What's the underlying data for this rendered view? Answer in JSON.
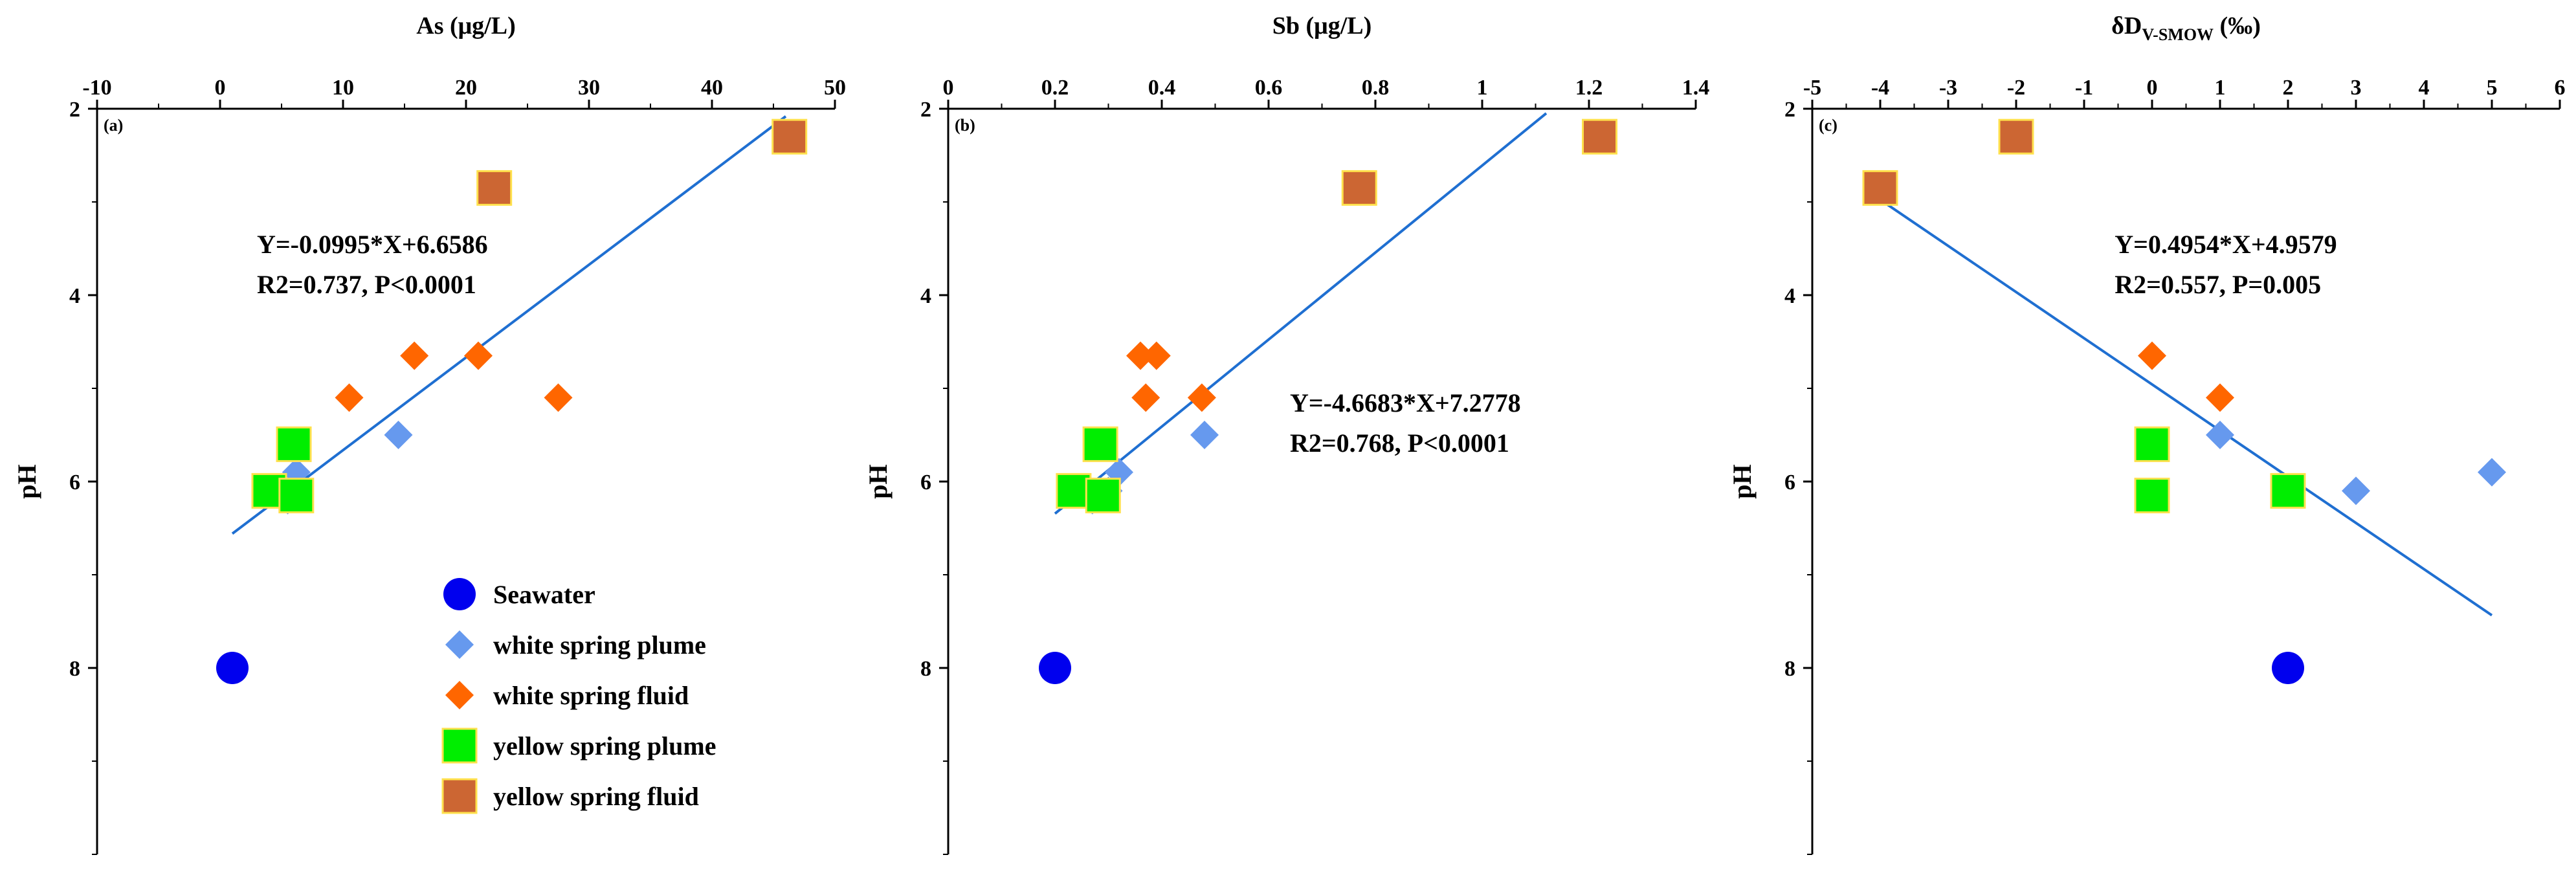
{
  "chart_data": {
    "type": "scatter",
    "legend": [
      {
        "key": "seawater",
        "label": "Seawater",
        "marker": "circle",
        "color": "#0000ee"
      },
      {
        "key": "wsp",
        "label": "white spring plume",
        "marker": "diamond",
        "color": "#6699ee"
      },
      {
        "key": "wsf",
        "label": "white spring fluid",
        "marker": "diamond",
        "color": "#ff6600"
      },
      {
        "key": "ysp",
        "label": "yellow spring plume",
        "marker": "square",
        "color": "#00ee00"
      },
      {
        "key": "ysf",
        "label": "yellow spring fluid",
        "marker": "square",
        "color": "#cc6633"
      }
    ],
    "panels": [
      {
        "id": "a",
        "letter": "(a)",
        "xlabel": "As (μg/L)",
        "ylabel": "pH",
        "xlim": [
          -10,
          50
        ],
        "ylim": [
          2,
          10
        ],
        "x_ticks": [
          -10,
          0,
          10,
          20,
          30,
          40,
          50
        ],
        "x_tick_labels": [
          "-10",
          "0",
          "10",
          "20",
          "30",
          "40",
          "50"
        ],
        "y_ticks": [
          2,
          4,
          6,
          8
        ],
        "y_tick_labels": [
          "2",
          "4",
          "6",
          "8"
        ],
        "x_minor_step": 5,
        "y_minor_step": 1,
        "series": [
          {
            "key": "seawater",
            "points": [
              [
                1,
                8.0
              ]
            ]
          },
          {
            "key": "wsp",
            "points": [
              [
                14.5,
                5.5
              ],
              [
                6.2,
                5.9
              ],
              [
                3.8,
                6.1
              ],
              [
                5.5,
                6.2
              ]
            ]
          },
          {
            "key": "wsf",
            "points": [
              [
                10.5,
                5.1
              ],
              [
                15.8,
                4.65
              ],
              [
                21,
                4.65
              ],
              [
                27.5,
                5.1
              ]
            ]
          },
          {
            "key": "ysp",
            "points": [
              [
                6,
                5.6
              ],
              [
                4,
                6.1
              ],
              [
                6.2,
                6.15
              ]
            ]
          },
          {
            "key": "ysf",
            "points": [
              [
                22.3,
                2.85
              ],
              [
                46.3,
                2.3
              ]
            ]
          }
        ],
        "fit": {
          "x_range": [
            1,
            46
          ],
          "slope": -0.0995,
          "intercept": 6.6586
        },
        "equation_lines": [
          "Y=-0.0995*X+6.6586",
          "R2=0.737, P<0.0001"
        ],
        "equation_pos": [
          3,
          3.55
        ],
        "show_legend": true
      },
      {
        "id": "b",
        "letter": "(b)",
        "xlabel": "Sb (μg/L)",
        "ylabel": "pH",
        "xlim": [
          0,
          1.4
        ],
        "ylim": [
          2,
          10
        ],
        "x_ticks": [
          0,
          0.2,
          0.4,
          0.6,
          0.8,
          1.0,
          1.2,
          1.4
        ],
        "x_tick_labels": [
          "0",
          "0.2",
          "0.4",
          "0.6",
          "0.8",
          "1",
          "1.2",
          "1.4"
        ],
        "y_ticks": [
          2,
          4,
          6,
          8
        ],
        "y_tick_labels": [
          "2",
          "4",
          "6",
          "8"
        ],
        "x_minor_step": 0.1,
        "y_minor_step": 1,
        "series": [
          {
            "key": "seawater",
            "points": [
              [
                0.2,
                8.0
              ]
            ]
          },
          {
            "key": "wsp",
            "points": [
              [
                0.48,
                5.5
              ],
              [
                0.32,
                5.9
              ],
              [
                0.3,
                6.1
              ],
              [
                0.27,
                6.2
              ]
            ]
          },
          {
            "key": "wsf",
            "points": [
              [
                0.36,
                4.65
              ],
              [
                0.39,
                4.65
              ],
              [
                0.37,
                5.1
              ],
              [
                0.475,
                5.1
              ]
            ]
          },
          {
            "key": "ysp",
            "points": [
              [
                0.285,
                5.6
              ],
              [
                0.235,
                6.1
              ],
              [
                0.29,
                6.15
              ]
            ]
          },
          {
            "key": "ysf",
            "points": [
              [
                0.77,
                2.85
              ],
              [
                1.22,
                2.3
              ]
            ]
          }
        ],
        "fit": {
          "x_range": [
            0.2,
            1.12
          ],
          "slope": -4.6683,
          "intercept": 7.2778
        },
        "equation_lines": [
          "Y=-4.6683*X+7.2778",
          "R2=0.768, P<0.0001"
        ],
        "equation_pos": [
          0.64,
          5.25
        ],
        "show_legend": false
      },
      {
        "id": "c",
        "letter": "(c)",
        "xlabel": "δD",
        "xlabel_sub": "V-SMOW",
        "xlabel_tail": " (‰)",
        "ylabel": "pH",
        "xlim": [
          -5,
          6
        ],
        "ylim": [
          2,
          10
        ],
        "x_ticks": [
          -5,
          -4,
          -3,
          -2,
          -1,
          0,
          1,
          2,
          3,
          4,
          5,
          6
        ],
        "x_tick_labels": [
          "-5",
          "-4",
          "-3",
          "-2",
          "-1",
          "0",
          "1",
          "2",
          "3",
          "4",
          "5",
          "6"
        ],
        "y_ticks": [
          2,
          4,
          6,
          8
        ],
        "y_tick_labels": [
          "2",
          "4",
          "6",
          "8"
        ],
        "x_minor_step": 0.5,
        "y_minor_step": 1,
        "series": [
          {
            "key": "seawater",
            "points": [
              [
                2,
                8.0
              ]
            ]
          },
          {
            "key": "wsp",
            "points": [
              [
                1,
                5.5
              ],
              [
                2,
                6.1
              ],
              [
                3,
                6.1
              ],
              [
                5,
                5.9
              ]
            ]
          },
          {
            "key": "wsf",
            "points": [
              [
                0,
                4.65
              ],
              [
                1,
                5.1
              ]
            ]
          },
          {
            "key": "ysp",
            "points": [
              [
                0,
                5.6
              ],
              [
                0,
                6.15
              ],
              [
                2,
                6.1
              ]
            ]
          },
          {
            "key": "ysf",
            "points": [
              [
                -4,
                2.85
              ],
              [
                -2,
                2.3
              ]
            ]
          }
        ],
        "fit": {
          "x_range": [
            -4,
            5
          ],
          "slope": 0.4954,
          "intercept": 4.9579
        },
        "equation_lines": [
          "Y=0.4954*X+4.9579",
          "R2=0.557, P=0.005"
        ],
        "equation_pos": [
          -0.55,
          3.55
        ],
        "show_legend": false
      }
    ]
  }
}
